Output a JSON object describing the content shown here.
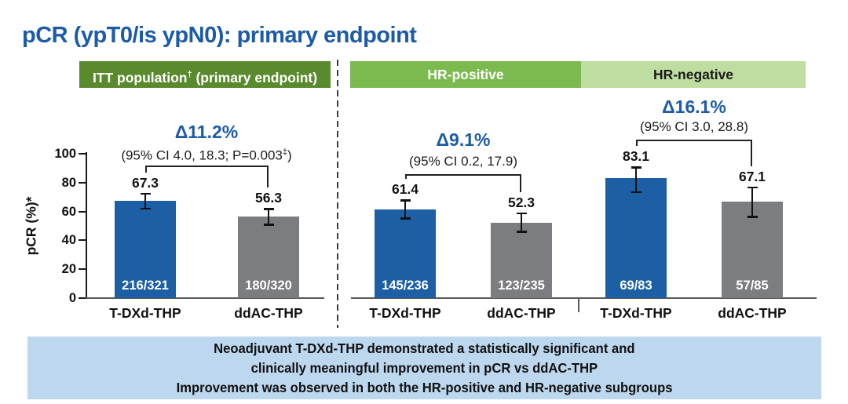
{
  "title": "pCR (ypT0/is ypN0): primary endpoint",
  "colors": {
    "title_blue": "#1c5ba8",
    "delta_blue": "#1c5ba8",
    "bar_tdxd": "#1d5fa5",
    "bar_ddac": "#7c7d80",
    "header_itt_bg": "#5a8a2e",
    "header_hrpos_bg": "#7cba50",
    "header_hrneg_bg": "#c0dda1",
    "header_light_text": "#ffffff",
    "header_dark_text": "#1a1a1a",
    "banner_bg": "#bdd7ee"
  },
  "chart_data": {
    "type": "bar",
    "title": "pCR (ypT0/is ypN0): primary endpoint",
    "ylabel": "pCR (%)*",
    "ylim": [
      0,
      100
    ],
    "yticks": [
      0,
      20,
      40,
      60,
      80,
      100
    ],
    "grid": false,
    "series_names": [
      "T-DXd-THP",
      "ddAC-THP"
    ],
    "panels": [
      {
        "name": "ITT",
        "header": {
          "text": "ITT population",
          "sup": "†",
          "post": " (primary endpoint)"
        },
        "delta": "Δ11.2%",
        "ci": {
          "text": "(95% CI 4.0, 18.3; P=0.003",
          "sup": "‡",
          "post": ")"
        },
        "bars": [
          {
            "group": "T-DXd-THP",
            "value": 67.3,
            "n": "216/321",
            "err_low": 61.8,
            "err_high": 72.4,
            "color_key": "bar_tdxd"
          },
          {
            "group": "ddAC-THP",
            "value": 56.3,
            "n": "180/320",
            "err_low": 50.7,
            "err_high": 61.8,
            "color_key": "bar_ddac"
          }
        ]
      },
      {
        "name": "HR-positive",
        "header": {
          "text": "HR-positive",
          "sup": "",
          "post": ""
        },
        "delta": "Δ9.1%",
        "ci": {
          "text": "(95% CI 0.2, 17.9",
          "sup": "",
          "post": ")"
        },
        "bars": [
          {
            "group": "T-DXd-THP",
            "value": 61.4,
            "n": "145/236",
            "err_low": 54.9,
            "err_high": 67.7,
            "color_key": "bar_tdxd"
          },
          {
            "group": "ddAC-THP",
            "value": 52.3,
            "n": "123/235",
            "err_low": 45.8,
            "err_high": 58.9,
            "color_key": "bar_ddac"
          }
        ]
      },
      {
        "name": "HR-negative",
        "header": {
          "text": "HR-negative",
          "sup": "",
          "post": ""
        },
        "delta": "Δ16.1%",
        "ci": {
          "text": "(95% CI 3.0, 28.8",
          "sup": "",
          "post": ")"
        },
        "bars": [
          {
            "group": "T-DXd-THP",
            "value": 83.1,
            "n": "69/83",
            "err_low": 73.3,
            "err_high": 90.5,
            "color_key": "bar_tdxd"
          },
          {
            "group": "ddAC-THP",
            "value": 67.1,
            "n": "57/85",
            "err_low": 56.0,
            "err_high": 76.9,
            "color_key": "bar_ddac"
          }
        ]
      }
    ]
  },
  "banner": {
    "lines": [
      "Neoadjuvant T-DXd-THP demonstrated a statistically significant and",
      "clinically meaningful improvement in pCR vs ddAC-THP",
      "Improvement was observed in both the HR-positive and HR-negative subgroups"
    ]
  }
}
